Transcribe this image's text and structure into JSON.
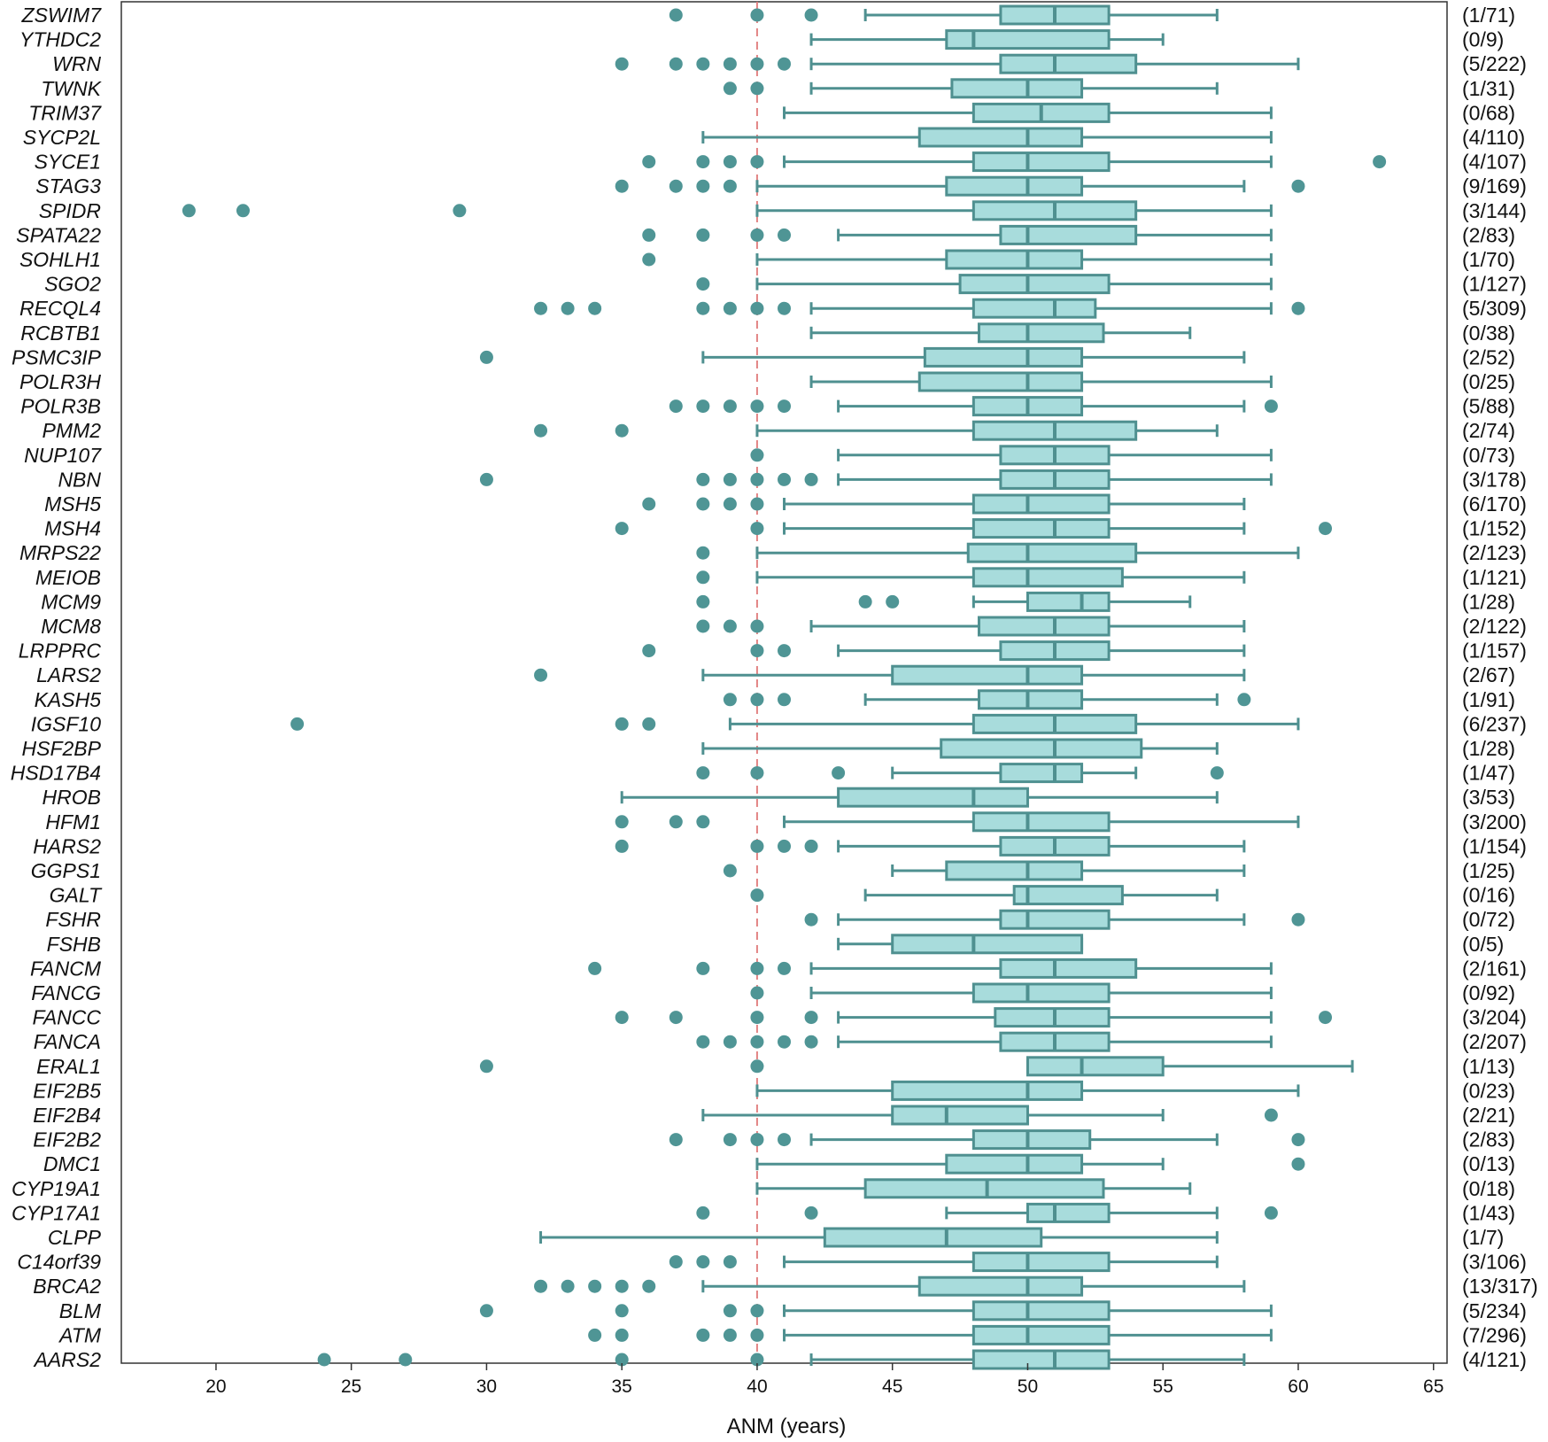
{
  "chart_data": {
    "type": "boxplot",
    "orientation": "horizontal",
    "xlabel": "ANM (years)",
    "xlim": [
      16.5,
      65.5
    ],
    "xticks": [
      20,
      25,
      30,
      35,
      40,
      45,
      50,
      55,
      60,
      65
    ],
    "reference_line": {
      "x": 40,
      "style": "dashed",
      "color": "#e07a7a"
    },
    "colors": {
      "box_fill": "#a8dcdc",
      "box_stroke": "#4f9090",
      "point": "#4f9595",
      "whisker": "#4f9090"
    },
    "grid": false,
    "series": [
      {
        "gene": "ZSWIM7",
        "count": "(1/71)",
        "whisker_low": 44,
        "q1": 49,
        "median": 51,
        "q3": 53,
        "whisker_high": 57,
        "outliers": [
          37,
          40,
          42
        ]
      },
      {
        "gene": "YTHDC2",
        "count": "(0/9)",
        "whisker_low": 42,
        "q1": 47,
        "median": 48,
        "q3": 53,
        "whisker_high": 55,
        "outliers": []
      },
      {
        "gene": "WRN",
        "count": "(5/222)",
        "whisker_low": 42,
        "q1": 49,
        "median": 51,
        "q3": 54,
        "whisker_high": 60,
        "outliers": [
          35,
          37,
          38,
          39,
          40,
          41
        ]
      },
      {
        "gene": "TWNK",
        "count": "(1/31)",
        "whisker_low": 42,
        "q1": 47.2,
        "median": 50,
        "q3": 52,
        "whisker_high": 57,
        "outliers": [
          39,
          40
        ]
      },
      {
        "gene": "TRIM37",
        "count": "(0/68)",
        "whisker_low": 41,
        "q1": 48,
        "median": 50.5,
        "q3": 53,
        "whisker_high": 59,
        "outliers": []
      },
      {
        "gene": "SYCP2L",
        "count": "(4/110)",
        "whisker_low": 38,
        "q1": 46,
        "median": 50,
        "q3": 52,
        "whisker_high": 59,
        "outliers": []
      },
      {
        "gene": "SYCE1",
        "count": "(4/107)",
        "whisker_low": 41,
        "q1": 48,
        "median": 50,
        "q3": 53,
        "whisker_high": 59,
        "outliers": [
          36,
          38,
          39,
          40,
          63
        ]
      },
      {
        "gene": "STAG3",
        "count": "(9/169)",
        "whisker_low": 40,
        "q1": 47,
        "median": 50,
        "q3": 52,
        "whisker_high": 58,
        "outliers": [
          35,
          37,
          38,
          39,
          60
        ]
      },
      {
        "gene": "SPIDR",
        "count": "(3/144)",
        "whisker_low": 40,
        "q1": 48,
        "median": 51,
        "q3": 54,
        "whisker_high": 59,
        "outliers": [
          19,
          21,
          29
        ]
      },
      {
        "gene": "SPATA22",
        "count": "(2/83)",
        "whisker_low": 43,
        "q1": 49,
        "median": 50,
        "q3": 54,
        "whisker_high": 59,
        "outliers": [
          36,
          38,
          40,
          41
        ]
      },
      {
        "gene": "SOHLH1",
        "count": "(1/70)",
        "whisker_low": 40,
        "q1": 47,
        "median": 50,
        "q3": 52,
        "whisker_high": 59,
        "outliers": [
          36
        ]
      },
      {
        "gene": "SGO2",
        "count": "(1/127)",
        "whisker_low": 40,
        "q1": 47.5,
        "median": 50,
        "q3": 53,
        "whisker_high": 59,
        "outliers": [
          38
        ]
      },
      {
        "gene": "RECQL4",
        "count": "(5/309)",
        "whisker_low": 42,
        "q1": 48,
        "median": 51,
        "q3": 52.5,
        "whisker_high": 59,
        "outliers": [
          32,
          33,
          34,
          38,
          39,
          40,
          41,
          60
        ]
      },
      {
        "gene": "RCBTB1",
        "count": "(0/38)",
        "whisker_low": 42,
        "q1": 48.2,
        "median": 50,
        "q3": 52.8,
        "whisker_high": 56,
        "outliers": []
      },
      {
        "gene": "PSMC3IP",
        "count": "(2/52)",
        "whisker_low": 38,
        "q1": 46.2,
        "median": 50,
        "q3": 52,
        "whisker_high": 58,
        "outliers": [
          30
        ]
      },
      {
        "gene": "POLR3H",
        "count": "(0/25)",
        "whisker_low": 42,
        "q1": 46,
        "median": 50,
        "q3": 52,
        "whisker_high": 59,
        "outliers": []
      },
      {
        "gene": "POLR3B",
        "count": "(5/88)",
        "whisker_low": 43,
        "q1": 48,
        "median": 50,
        "q3": 52,
        "whisker_high": 58,
        "outliers": [
          37,
          38,
          39,
          40,
          41,
          59
        ]
      },
      {
        "gene": "PMM2",
        "count": "(2/74)",
        "whisker_low": 40,
        "q1": 48,
        "median": 51,
        "q3": 54,
        "whisker_high": 57,
        "outliers": [
          32,
          35
        ]
      },
      {
        "gene": "NUP107",
        "count": "(0/73)",
        "whisker_low": 43,
        "q1": 49,
        "median": 51,
        "q3": 53,
        "whisker_high": 59,
        "outliers": [
          40
        ]
      },
      {
        "gene": "NBN",
        "count": "(3/178)",
        "whisker_low": 43,
        "q1": 49,
        "median": 51,
        "q3": 53,
        "whisker_high": 59,
        "outliers": [
          30,
          38,
          39,
          40,
          41,
          42
        ]
      },
      {
        "gene": "MSH5",
        "count": "(6/170)",
        "whisker_low": 41,
        "q1": 48,
        "median": 50,
        "q3": 53,
        "whisker_high": 58,
        "outliers": [
          36,
          38,
          39,
          40
        ]
      },
      {
        "gene": "MSH4",
        "count": "(1/152)",
        "whisker_low": 41,
        "q1": 48,
        "median": 51,
        "q3": 53,
        "whisker_high": 58,
        "outliers": [
          35,
          40,
          61
        ]
      },
      {
        "gene": "MRPS22",
        "count": "(2/123)",
        "whisker_low": 40,
        "q1": 47.8,
        "median": 50,
        "q3": 54,
        "whisker_high": 60,
        "outliers": [
          38
        ]
      },
      {
        "gene": "MEIOB",
        "count": "(1/121)",
        "whisker_low": 40,
        "q1": 48,
        "median": 50,
        "q3": 53.5,
        "whisker_high": 58,
        "outliers": [
          38
        ]
      },
      {
        "gene": "MCM9",
        "count": "(1/28)",
        "whisker_low": 48,
        "q1": 50,
        "median": 52,
        "q3": 53,
        "whisker_high": 56,
        "outliers": [
          38,
          44,
          45
        ]
      },
      {
        "gene": "MCM8",
        "count": "(2/122)",
        "whisker_low": 42,
        "q1": 48.2,
        "median": 51,
        "q3": 53,
        "whisker_high": 58,
        "outliers": [
          38,
          39,
          40
        ]
      },
      {
        "gene": "LRPPRC",
        "count": "(1/157)",
        "whisker_low": 43,
        "q1": 49,
        "median": 51,
        "q3": 53,
        "whisker_high": 58,
        "outliers": [
          36,
          40,
          41
        ]
      },
      {
        "gene": "LARS2",
        "count": "(2/67)",
        "whisker_low": 38,
        "q1": 45,
        "median": 50,
        "q3": 52,
        "whisker_high": 58,
        "outliers": [
          32
        ]
      },
      {
        "gene": "KASH5",
        "count": "(1/91)",
        "whisker_low": 44,
        "q1": 48.2,
        "median": 50,
        "q3": 52,
        "whisker_high": 57,
        "outliers": [
          39,
          40,
          41,
          58
        ]
      },
      {
        "gene": "IGSF10",
        "count": "(6/237)",
        "whisker_low": 39,
        "q1": 48,
        "median": 51,
        "q3": 54,
        "whisker_high": 60,
        "outliers": [
          23,
          35,
          36
        ]
      },
      {
        "gene": "HSF2BP",
        "count": "(1/28)",
        "whisker_low": 38,
        "q1": 46.8,
        "median": 51,
        "q3": 54.2,
        "whisker_high": 57,
        "outliers": []
      },
      {
        "gene": "HSD17B4",
        "count": "(1/47)",
        "whisker_low": 45,
        "q1": 49,
        "median": 51,
        "q3": 52,
        "whisker_high": 54,
        "outliers": [
          38,
          40,
          43,
          57
        ]
      },
      {
        "gene": "HROB",
        "count": "(3/53)",
        "whisker_low": 35,
        "q1": 43,
        "median": 48,
        "q3": 50,
        "whisker_high": 57,
        "outliers": []
      },
      {
        "gene": "HFM1",
        "count": "(3/200)",
        "whisker_low": 41,
        "q1": 48,
        "median": 50,
        "q3": 53,
        "whisker_high": 60,
        "outliers": [
          35,
          37,
          38
        ]
      },
      {
        "gene": "HARS2",
        "count": "(1/154)",
        "whisker_low": 43,
        "q1": 49,
        "median": 51,
        "q3": 53,
        "whisker_high": 58,
        "outliers": [
          35,
          40,
          41,
          42
        ]
      },
      {
        "gene": "GGPS1",
        "count": "(1/25)",
        "whisker_low": 45,
        "q1": 47,
        "median": 50,
        "q3": 52,
        "whisker_high": 58,
        "outliers": [
          39
        ]
      },
      {
        "gene": "GALT",
        "count": "(0/16)",
        "whisker_low": 44,
        "q1": 49.5,
        "median": 50,
        "q3": 53.5,
        "whisker_high": 57,
        "outliers": [
          40
        ]
      },
      {
        "gene": "FSHR",
        "count": "(0/72)",
        "whisker_low": 43,
        "q1": 49,
        "median": 50,
        "q3": 53,
        "whisker_high": 58,
        "outliers": [
          42,
          60
        ]
      },
      {
        "gene": "FSHB",
        "count": "(0/5)",
        "whisker_low": 43,
        "q1": 45,
        "median": 48,
        "q3": 52,
        "whisker_high": 52,
        "outliers": []
      },
      {
        "gene": "FANCM",
        "count": "(2/161)",
        "whisker_low": 42,
        "q1": 49,
        "median": 51,
        "q3": 54,
        "whisker_high": 59,
        "outliers": [
          34,
          38,
          40,
          41
        ]
      },
      {
        "gene": "FANCG",
        "count": "(0/92)",
        "whisker_low": 42,
        "q1": 48,
        "median": 50,
        "q3": 53,
        "whisker_high": 59,
        "outliers": [
          40
        ]
      },
      {
        "gene": "FANCC",
        "count": "(3/204)",
        "whisker_low": 43,
        "q1": 48.8,
        "median": 51,
        "q3": 53,
        "whisker_high": 59,
        "outliers": [
          35,
          37,
          40,
          42,
          61
        ]
      },
      {
        "gene": "FANCA",
        "count": "(2/207)",
        "whisker_low": 43,
        "q1": 49,
        "median": 51,
        "q3": 53,
        "whisker_high": 59,
        "outliers": [
          38,
          39,
          40,
          41,
          42
        ]
      },
      {
        "gene": "ERAL1",
        "count": "(1/13)",
        "whisker_low": 50,
        "q1": 50,
        "median": 52,
        "q3": 55,
        "whisker_high": 62,
        "outliers": [
          30,
          40
        ]
      },
      {
        "gene": "EIF2B5",
        "count": "(0/23)",
        "whisker_low": 40,
        "q1": 45,
        "median": 50,
        "q3": 52,
        "whisker_high": 60,
        "outliers": []
      },
      {
        "gene": "EIF2B4",
        "count": "(2/21)",
        "whisker_low": 38,
        "q1": 45,
        "median": 47,
        "q3": 50,
        "whisker_high": 55,
        "outliers": [
          59
        ]
      },
      {
        "gene": "EIF2B2",
        "count": "(2/83)",
        "whisker_low": 42,
        "q1": 48,
        "median": 50,
        "q3": 52.3,
        "whisker_high": 57,
        "outliers": [
          37,
          39,
          40,
          41,
          60
        ]
      },
      {
        "gene": "DMC1",
        "count": "(0/13)",
        "whisker_low": 40,
        "q1": 47,
        "median": 50,
        "q3": 52,
        "whisker_high": 55,
        "outliers": [
          60
        ]
      },
      {
        "gene": "CYP19A1",
        "count": "(0/18)",
        "whisker_low": 40,
        "q1": 44,
        "median": 48.5,
        "q3": 52.8,
        "whisker_high": 56,
        "outliers": []
      },
      {
        "gene": "CYP17A1",
        "count": "(1/43)",
        "whisker_low": 47,
        "q1": 50,
        "median": 51,
        "q3": 53,
        "whisker_high": 57,
        "outliers": [
          38,
          42,
          59
        ]
      },
      {
        "gene": "CLPP",
        "count": "(1/7)",
        "whisker_low": 32,
        "q1": 42.5,
        "median": 47,
        "q3": 50.5,
        "whisker_high": 57,
        "outliers": []
      },
      {
        "gene": "C14orf39",
        "count": "(3/106)",
        "whisker_low": 41,
        "q1": 48,
        "median": 50,
        "q3": 53,
        "whisker_high": 57,
        "outliers": [
          37,
          38,
          39
        ]
      },
      {
        "gene": "BRCA2",
        "count": "(13/317)",
        "whisker_low": 38,
        "q1": 46,
        "median": 50,
        "q3": 52,
        "whisker_high": 58,
        "outliers": [
          32,
          33,
          34,
          35,
          36
        ]
      },
      {
        "gene": "BLM",
        "count": "(5/234)",
        "whisker_low": 41,
        "q1": 48,
        "median": 50,
        "q3": 53,
        "whisker_high": 59,
        "outliers": [
          30,
          35,
          39,
          40
        ]
      },
      {
        "gene": "ATM",
        "count": "(7/296)",
        "whisker_low": 41,
        "q1": 48,
        "median": 50,
        "q3": 53,
        "whisker_high": 59,
        "outliers": [
          34,
          35,
          38,
          39,
          40
        ]
      },
      {
        "gene": "AARS2",
        "count": "(4/121)",
        "whisker_low": 42,
        "q1": 48,
        "median": 51,
        "q3": 53,
        "whisker_high": 58,
        "outliers": [
          24,
          27,
          35,
          40
        ]
      }
    ]
  }
}
